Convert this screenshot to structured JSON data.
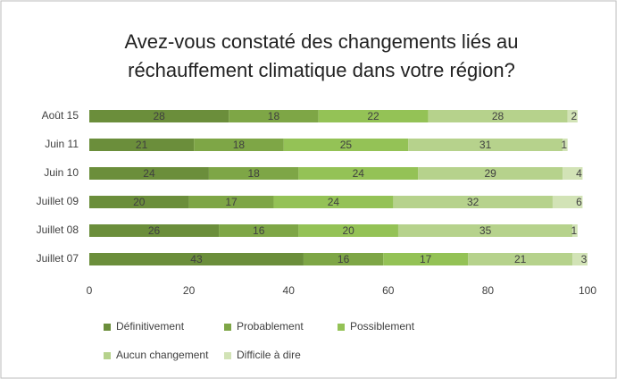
{
  "chart_data": {
    "type": "stacked_bar_horizontal",
    "title": [
      "Avez-vous constaté des changements liés au",
      "réchauffement climatique dans votre région?"
    ],
    "categories": [
      "Août 15",
      "Juin 11",
      "Juin 10",
      "Juillet 09",
      "Juillet 08",
      "Juillet 07"
    ],
    "series": [
      {
        "name": "Définitivement",
        "color": "#6b8e3b",
        "values": [
          28,
          21,
          24,
          20,
          26,
          43
        ]
      },
      {
        "name": "Probablement",
        "color": "#7ea646",
        "values": [
          18,
          18,
          18,
          17,
          16,
          16
        ]
      },
      {
        "name": "Possiblement",
        "color": "#94c256",
        "values": [
          22,
          25,
          24,
          24,
          20,
          17
        ]
      },
      {
        "name": "Aucun changement",
        "color": "#b6d28c",
        "values": [
          28,
          31,
          29,
          32,
          35,
          21
        ]
      },
      {
        "name": "Difficile à dire",
        "color": "#d2e3b6",
        "values": [
          2,
          1,
          4,
          6,
          1,
          3
        ]
      }
    ],
    "xlim": [
      0,
      100
    ],
    "xticks": [
      0,
      20,
      40,
      60,
      80,
      100
    ],
    "grid": false,
    "legend": "bottom"
  }
}
